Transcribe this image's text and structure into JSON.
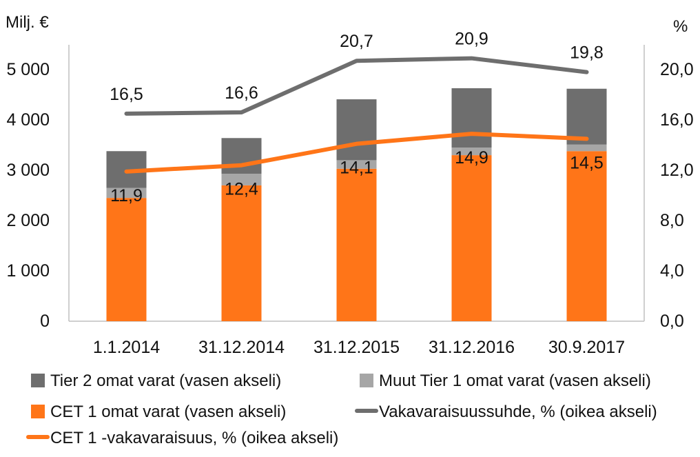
{
  "chart_data": {
    "type": "bar",
    "stacked": true,
    "left_axis_unit": "Milj. €",
    "right_axis_unit": "%",
    "categories": [
      "1.1.2014",
      "31.12.2014",
      "31.12.2015",
      "31.12.2016",
      "30.9.2017"
    ],
    "left_ylim": [
      0,
      5500
    ],
    "left_ticks": [
      "0",
      "1 000",
      "2 000",
      "3 000",
      "4 000",
      "5 000"
    ],
    "left_tick_values": [
      0,
      1000,
      2000,
      3000,
      4000,
      5000
    ],
    "right_ylim": [
      0,
      22
    ],
    "right_ticks": [
      "0,0",
      "4,0",
      "8,0",
      "12,0",
      "16,0",
      "20,0"
    ],
    "right_tick_values": [
      0,
      4,
      8,
      12,
      16,
      20
    ],
    "bar_series": [
      {
        "name": "CET 1 omat varat (vasen akseli)",
        "color": "#FF7518",
        "values": [
          2450,
          2700,
          3030,
          3300,
          3380
        ]
      },
      {
        "name": "Muut Tier 1 omat varat (vasen akseli)",
        "color": "#A6A6A6",
        "values": [
          200,
          230,
          170,
          150,
          130
        ]
      },
      {
        "name": "Tier 2 omat varat (vasen akseli)",
        "color": "#6E6E6E",
        "values": [
          730,
          710,
          1210,
          1180,
          1110
        ]
      }
    ],
    "line_series": [
      {
        "name": "Vakavaraisuussuhde, % (oikea akseli)",
        "color": "#6E6E6E",
        "values": [
          16.5,
          16.6,
          20.7,
          20.9,
          19.8
        ],
        "labels": [
          "16,5",
          "16,6",
          "20,7",
          "20,9",
          "19,8"
        ]
      },
      {
        "name": "CET 1 -vakavaraisuus, % (oikea akseli)",
        "color": "#FF7518",
        "values": [
          11.9,
          12.4,
          14.1,
          14.9,
          14.5
        ],
        "labels": [
          "11,9",
          "12,4",
          "14,1",
          "14,9",
          "14,5"
        ]
      }
    ],
    "legend": {
      "placement": "bottom",
      "items": [
        {
          "label": "Tier 2 omat varat (vasen akseli)",
          "kind": "box",
          "color": "#6E6E6E"
        },
        {
          "label": "Muut Tier 1 omat varat (vasen akseli)",
          "kind": "box",
          "color": "#A6A6A6"
        },
        {
          "label": "CET 1 omat varat (vasen akseli)",
          "kind": "box",
          "color": "#FF7518"
        },
        {
          "label": "Vakavaraisuussuhde, % (oikea akseli)",
          "kind": "line",
          "color": "#6E6E6E"
        },
        {
          "label": "CET 1 -vakavaraisuus, % (oikea akseli)",
          "kind": "line",
          "color": "#FF7518"
        }
      ]
    },
    "grid": false
  }
}
